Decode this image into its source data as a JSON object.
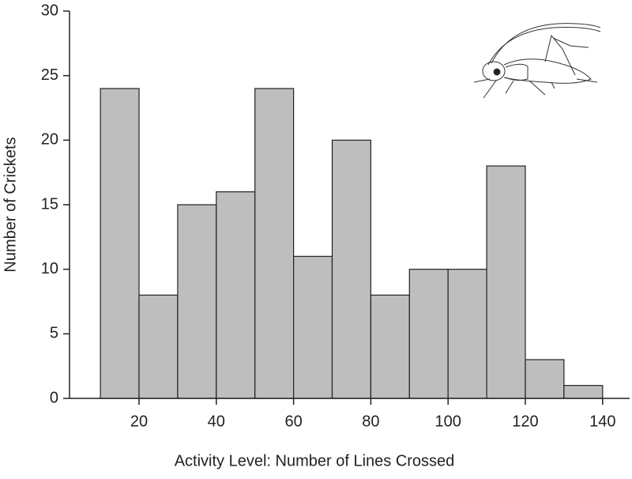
{
  "chart_data": {
    "type": "histogram",
    "x_label": "Activity Level: Number of Lines Crossed",
    "y_label": "Number of Crickets",
    "bins": [
      10,
      20,
      30,
      40,
      50,
      60,
      70,
      80,
      90,
      100,
      110,
      120,
      130,
      140
    ],
    "values": [
      24,
      8,
      15,
      16,
      24,
      11,
      20,
      8,
      10,
      10,
      18,
      3,
      1
    ],
    "color": "#bebebe",
    "xlim": [
      2,
      147
    ],
    "xticks": [
      20,
      40,
      60,
      80,
      100,
      120,
      140
    ],
    "ylim": [
      0,
      30
    ],
    "yticks": [
      0,
      5,
      10,
      15,
      20,
      25,
      30
    ]
  }
}
